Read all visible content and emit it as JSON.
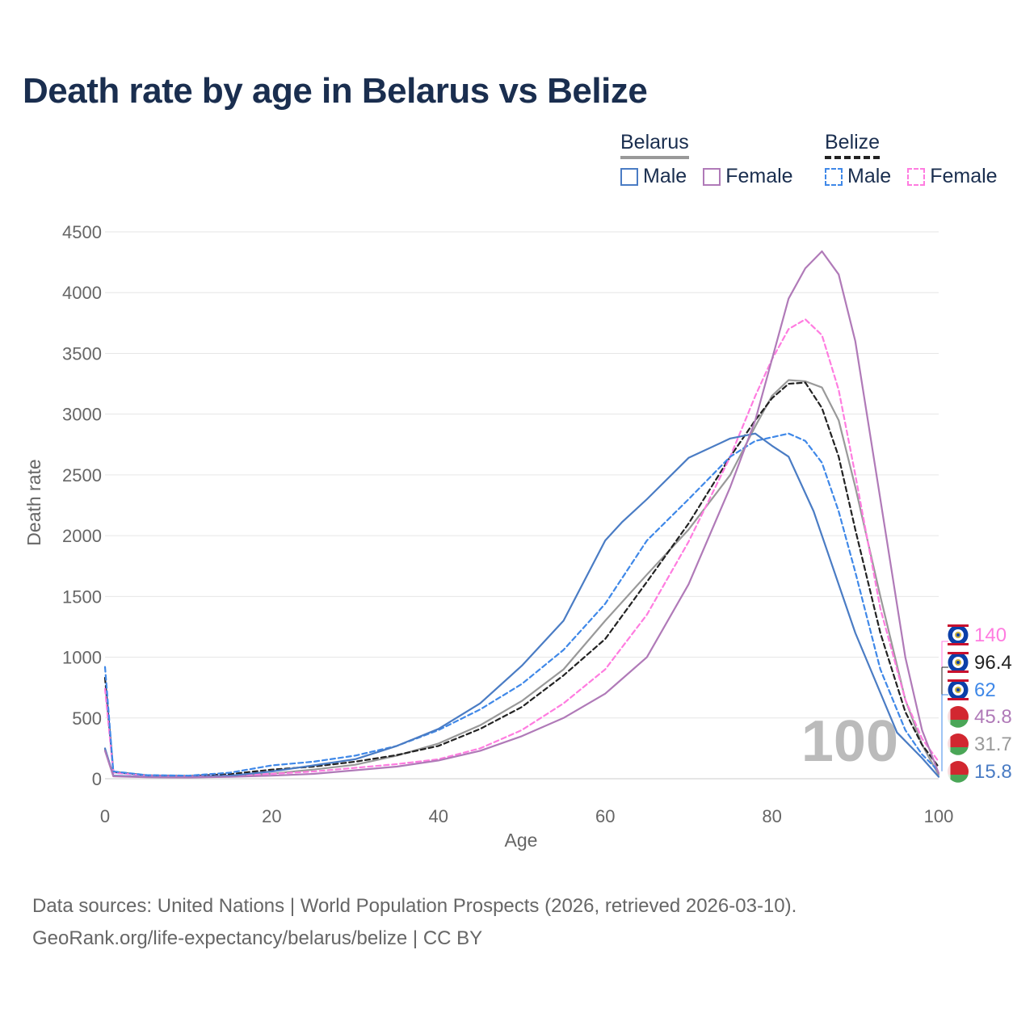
{
  "title": "Death rate by age in Belarus vs Belize",
  "legend": {
    "groups": [
      {
        "name": "Belarus",
        "underline": "solid",
        "color": "#999999",
        "items": [
          {
            "label": "Male",
            "color": "#4a7cc4",
            "dash": false
          },
          {
            "label": "Female",
            "color": "#b07ab8",
            "dash": false
          }
        ]
      },
      {
        "name": "Belize",
        "underline": "dashed",
        "color": "#222222",
        "items": [
          {
            "label": "Male",
            "color": "#3f88e8",
            "dash": true
          },
          {
            "label": "Female",
            "color": "#ff7ce0",
            "dash": true
          }
        ]
      }
    ]
  },
  "chart_data": {
    "type": "line",
    "title": "Death rate by age in Belarus vs Belize",
    "xlabel": "Age",
    "ylabel": "Death rate",
    "xlim": [
      0,
      100
    ],
    "ylim": [
      0,
      4500
    ],
    "xticks": [
      0,
      20,
      40,
      60,
      80,
      100
    ],
    "yticks": [
      0,
      500,
      1000,
      1500,
      2000,
      2500,
      3000,
      3500,
      4000,
      4500
    ],
    "grid": true,
    "watermark": "100",
    "series": [
      {
        "name": "Belarus Male",
        "color": "#4a7cc4",
        "dash": false,
        "end_label": "15.8",
        "x": [
          0,
          1,
          5,
          10,
          15,
          20,
          25,
          30,
          35,
          40,
          45,
          50,
          55,
          60,
          62,
          65,
          70,
          75,
          78,
          80,
          82,
          85,
          90,
          95,
          98,
          100
        ],
        "y": [
          250,
          25,
          15,
          12,
          25,
          60,
          110,
          160,
          270,
          410,
          620,
          930,
          1300,
          1960,
          2110,
          2300,
          2640,
          2800,
          2840,
          2740,
          2650,
          2200,
          1200,
          380,
          170,
          15.8
        ]
      },
      {
        "name": "Belarus Female",
        "color": "#b07ab8",
        "dash": false,
        "end_label": "45.8",
        "x": [
          0,
          1,
          5,
          10,
          15,
          20,
          25,
          30,
          35,
          40,
          45,
          50,
          55,
          60,
          65,
          70,
          75,
          78,
          80,
          82,
          84,
          86,
          88,
          90,
          93,
          96,
          98,
          100
        ],
        "y": [
          230,
          20,
          12,
          10,
          15,
          25,
          40,
          70,
          100,
          150,
          230,
          350,
          500,
          700,
          1000,
          1600,
          2400,
          2950,
          3450,
          3950,
          4200,
          4340,
          4150,
          3600,
          2300,
          1000,
          400,
          45.8
        ]
      },
      {
        "name": "Belize Male",
        "color": "#3f88e8",
        "dash": true,
        "end_label": "62",
        "x": [
          0,
          1,
          5,
          10,
          15,
          20,
          25,
          30,
          35,
          40,
          45,
          50,
          55,
          60,
          65,
          70,
          75,
          78,
          80,
          82,
          84,
          86,
          88,
          90,
          93,
          96,
          98,
          100
        ],
        "y": [
          920,
          60,
          30,
          25,
          50,
          110,
          140,
          190,
          270,
          400,
          570,
          780,
          1060,
          1440,
          1960,
          2300,
          2650,
          2780,
          2810,
          2840,
          2780,
          2600,
          2200,
          1700,
          900,
          400,
          200,
          62
        ]
      },
      {
        "name": "Belize Female",
        "color": "#ff7ce0",
        "dash": true,
        "end_label": "140",
        "x": [
          0,
          1,
          5,
          10,
          15,
          20,
          25,
          30,
          35,
          40,
          45,
          50,
          55,
          60,
          65,
          70,
          75,
          78,
          80,
          82,
          84,
          86,
          88,
          90,
          93,
          96,
          98,
          100
        ],
        "y": [
          740,
          50,
          25,
          18,
          25,
          40,
          60,
          90,
          120,
          160,
          250,
          400,
          620,
          900,
          1350,
          1950,
          2650,
          3150,
          3450,
          3700,
          3780,
          3650,
          3200,
          2500,
          1400,
          650,
          330,
          140
        ]
      },
      {
        "name": "Belarus Total",
        "color": "#999999",
        "dash": false,
        "end_label": "31.7",
        "x": [
          0,
          1,
          5,
          10,
          15,
          20,
          25,
          30,
          35,
          40,
          45,
          50,
          55,
          60,
          65,
          70,
          75,
          78,
          80,
          82,
          84,
          86,
          88,
          90,
          93,
          96,
          98,
          100
        ],
        "y": [
          240,
          22,
          14,
          11,
          20,
          42,
          75,
          115,
          190,
          290,
          440,
          640,
          900,
          1300,
          1680,
          2050,
          2500,
          2900,
          3150,
          3280,
          3270,
          3220,
          2950,
          2400,
          1500,
          650,
          280,
          31.7
        ]
      },
      {
        "name": "Belize Total",
        "color": "#222222",
        "dash": true,
        "end_label": "96.4",
        "x": [
          0,
          1,
          5,
          10,
          15,
          20,
          25,
          30,
          35,
          40,
          45,
          50,
          55,
          60,
          65,
          70,
          75,
          78,
          80,
          82,
          84,
          86,
          88,
          90,
          93,
          96,
          98,
          100
        ],
        "y": [
          830,
          55,
          28,
          22,
          38,
          75,
          100,
          140,
          195,
          270,
          410,
          590,
          850,
          1150,
          1620,
          2100,
          2650,
          2950,
          3130,
          3250,
          3260,
          3050,
          2650,
          2050,
          1200,
          550,
          280,
          96.4
        ]
      }
    ]
  },
  "footer": {
    "line1": "Data sources: United Nations | World Population Prospects (2026, retrieved 2026-03-10).",
    "line2": "GeoRank.org/life-expectancy/belarus/belize | CC BY"
  }
}
